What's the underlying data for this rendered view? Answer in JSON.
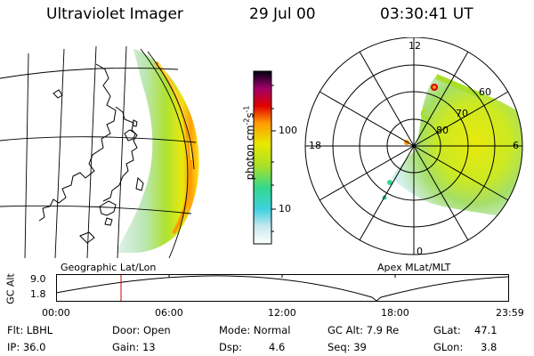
{
  "header": {
    "title": "Ultraviolet Imager",
    "date": "29 Jul 00",
    "time": "03:30:41 UT"
  },
  "colorbar": {
    "label": "photon cm",
    "label_sup1": "-2",
    "label_mid": "s",
    "label_sup2": "-1",
    "ticks": [
      "100",
      "10"
    ]
  },
  "geo_panel": {
    "caption": "Geographic Lat/Lon"
  },
  "polar_panel": {
    "caption": "Apex MLat/MLT",
    "mlt_labels": {
      "top": "12",
      "left": "18",
      "right": "6",
      "bottom": "0"
    },
    "mlat_labels": [
      "60",
      "70",
      "80"
    ]
  },
  "orbit": {
    "axis_label": "GC Alt",
    "y_ticks": [
      "9.0",
      "1.8"
    ],
    "x_ticks": [
      "00:00",
      "06:00",
      "12:00",
      "18:00",
      "23:59"
    ]
  },
  "status": {
    "flt": "Flt: LBHL",
    "ip": "IP: 36.0",
    "door": "Door: Open",
    "gain": "Gain: 13",
    "mode": "Mode: Normal",
    "dsp_label": "Dsp:",
    "dsp_value": "4.6",
    "gc_alt": "GC Alt: 7.9 Re",
    "seq": "Seq: 39",
    "glat_label": "GLat:",
    "glat_value": "47.1",
    "glon_label": "GLon:",
    "glon_value": "3.8"
  },
  "colors": {
    "aurora_low": "#d8f0f0",
    "aurora_mid": "#a8e028",
    "aurora_high": "#e8e800",
    "aurora_peak": "#ff8800",
    "cursor": "#d00000"
  }
}
